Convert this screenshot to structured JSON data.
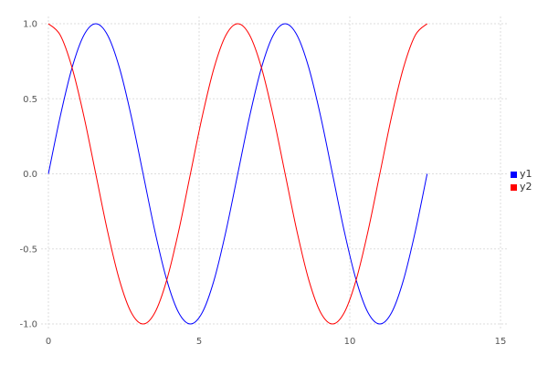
{
  "chart_data": {
    "type": "line",
    "title": "",
    "xlabel": "",
    "ylabel": "",
    "xlim": [
      0,
      15
    ],
    "ylim": [
      -1,
      1
    ],
    "xticks": [
      "0",
      "5",
      "10",
      "15"
    ],
    "yticks": [
      "-1.0",
      "-0.5",
      "0.0",
      "0.5",
      "1.0"
    ],
    "grid": true,
    "legend_position": "right",
    "x": [
      0,
      0.393,
      0.785,
      1.178,
      1.571,
      1.963,
      2.356,
      2.749,
      3.142,
      3.534,
      3.927,
      4.32,
      4.712,
      5.105,
      5.498,
      5.89,
      6.283,
      6.676,
      7.069,
      7.461,
      7.854,
      8.247,
      8.639,
      9.032,
      9.425,
      9.817,
      10.21,
      10.603,
      10.996,
      11.388,
      11.781,
      12.174,
      12.566
    ],
    "series": [
      {
        "name": "y1",
        "color": "#0000ff",
        "values": [
          0,
          0.383,
          0.707,
          0.924,
          1,
          0.924,
          0.707,
          0.383,
          0,
          -0.383,
          -0.707,
          -0.924,
          -1,
          -0.924,
          -0.707,
          -0.383,
          0,
          0.383,
          0.707,
          0.924,
          1,
          0.924,
          0.707,
          0.383,
          0,
          -0.383,
          -0.707,
          -0.924,
          -1,
          -0.924,
          -0.707,
          -0.383,
          0
        ]
      },
      {
        "name": "y2",
        "color": "#ff0000",
        "values": [
          1,
          0.924,
          0.707,
          0.383,
          0,
          -0.383,
          -0.707,
          -0.924,
          -1,
          -0.924,
          -0.707,
          -0.383,
          0,
          0.383,
          0.707,
          0.924,
          1,
          0.924,
          0.707,
          0.383,
          0,
          -0.383,
          -0.707,
          -0.924,
          -1,
          -0.924,
          -0.707,
          -0.383,
          0,
          0.383,
          0.707,
          0.924,
          1
        ]
      }
    ]
  }
}
